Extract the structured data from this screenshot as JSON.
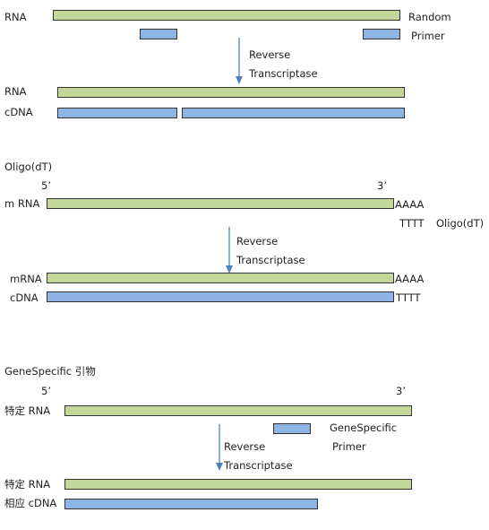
{
  "panel1": {
    "rna_label": "RNA",
    "primer_label_1": "Random",
    "primer_label_2": "Primer",
    "arrow_label_1": "Reverse",
    "arrow_label_2": "Transcriptase",
    "result_rna_label": "RNA",
    "result_cdna_label": "cDNA"
  },
  "panel2": {
    "title": "Oligo(dT)",
    "five_prime": "5’",
    "three_prime": "3’",
    "mrna_label": "m RNA",
    "polya": "AAAA",
    "polyt": "TTTT",
    "primer_label": "Oligo(dT)",
    "arrow_label_1": "Reverse",
    "arrow_label_2": "Transcriptase",
    "result_mrna_label": "mRNA",
    "result_polya": "AAAA",
    "result_cdna_label": "cDNA",
    "result_polyt": "TTTT"
  },
  "panel3": {
    "title": "GeneSpecific 引物",
    "five_prime": "5’",
    "three_prime": "3’",
    "rna_label": "特定 RNA",
    "primer_label_1": "GeneSpecific",
    "primer_label_2": "Primer",
    "arrow_label_1": "Reverse",
    "arrow_label_2": "Transcriptase",
    "result_rna_label": "特定 RNA",
    "result_cdna_label": "相应 cDNA"
  },
  "colors": {
    "rna": "#c4d79b",
    "cdna": "#8db4e2",
    "arrow": "#4f81bd",
    "outline": "#333333"
  }
}
